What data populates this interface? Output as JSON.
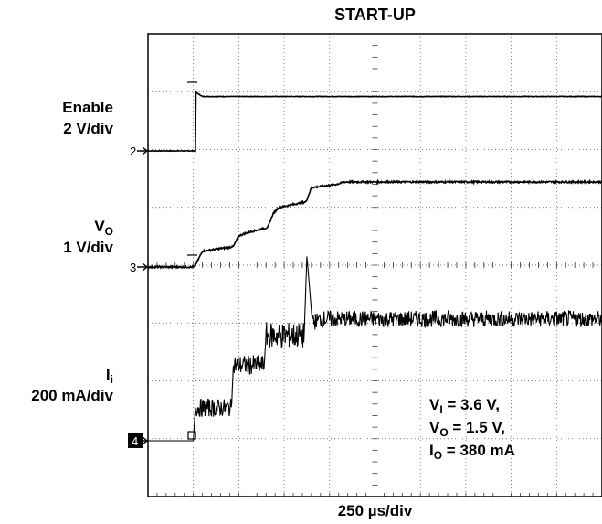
{
  "chart_data": {
    "type": "line",
    "title": "START-UP",
    "x_scale": {
      "label": "250 µs/div",
      "value": 250,
      "unit": "µs",
      "divisions": 10,
      "range_us": [
        0,
        2500
      ]
    },
    "channels": [
      {
        "id": "2",
        "name": "Enable",
        "scale": "2 V/div",
        "marker": "2",
        "points": [
          [
            0,
            0
          ],
          [
            255,
            0
          ],
          [
            262,
            0
          ],
          [
            262,
            3.3
          ],
          [
            300,
            3.05
          ],
          [
            2500,
            3.05
          ]
        ]
      },
      {
        "id": "3",
        "name": "VO",
        "sym": "V",
        "sub": "O",
        "scale": "1 V/div",
        "marker": "3",
        "points": [
          [
            0,
            0
          ],
          [
            255,
            0
          ],
          [
            275,
            0.12
          ],
          [
            300,
            0.28
          ],
          [
            470,
            0.36
          ],
          [
            500,
            0.55
          ],
          [
            540,
            0.6
          ],
          [
            660,
            0.7
          ],
          [
            690,
            0.95
          ],
          [
            720,
            1.05
          ],
          [
            870,
            1.15
          ],
          [
            900,
            1.4
          ],
          [
            1040,
            1.46
          ],
          [
            1080,
            1.5
          ],
          [
            2500,
            1.5
          ]
        ]
      },
      {
        "id": "4",
        "name": "Ii",
        "sym": "I",
        "sub": "i",
        "scale": "200 mA/div",
        "marker": "4",
        "points": [
          [
            0,
            0
          ],
          [
            250,
            0
          ],
          [
            260,
            100
          ],
          [
            460,
            100
          ],
          [
            470,
            230
          ],
          [
            640,
            230
          ],
          [
            650,
            320
          ],
          [
            860,
            320
          ],
          [
            875,
            560
          ],
          [
            905,
            360
          ],
          [
            960,
            370
          ],
          [
            2500,
            370
          ]
        ],
        "noise": [
          [
            0,
            0,
            8
          ],
          [
            260,
            460,
            55
          ],
          [
            470,
            640,
            60
          ],
          [
            650,
            860,
            80
          ],
          [
            905,
            2500,
            50
          ]
        ]
      }
    ],
    "conditions": [
      {
        "sym": "V",
        "sub": "I",
        "text": " = 3.6 V,"
      },
      {
        "sym": "V",
        "sub": "O",
        "text": " = 1.5 V,"
      },
      {
        "sym": "I",
        "sub": "O",
        "text": " = 380 mA"
      }
    ],
    "grid": true,
    "legend": "left"
  }
}
